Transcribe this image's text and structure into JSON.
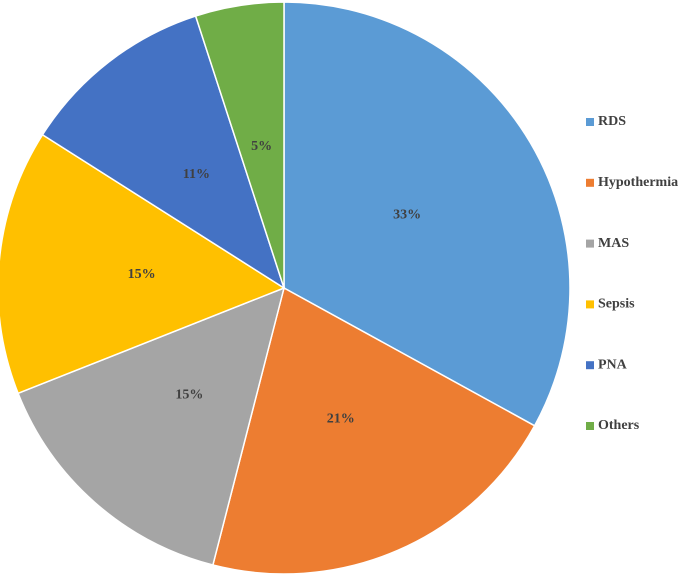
{
  "chart_data": {
    "type": "pie",
    "categories": [
      "RDS",
      "Hypothermia",
      "MAS",
      "Sepsis",
      "PNA",
      "Others"
    ],
    "values": [
      33,
      21,
      15,
      15,
      11,
      5
    ],
    "value_labels": [
      "33%",
      "21%",
      "15%",
      "15%",
      "11%",
      "5%"
    ],
    "colors": [
      "#5b9bd5",
      "#ed7d31",
      "#a5a5a5",
      "#ffc000",
      "#4472c4",
      "#70ad47"
    ],
    "legend": "right"
  }
}
